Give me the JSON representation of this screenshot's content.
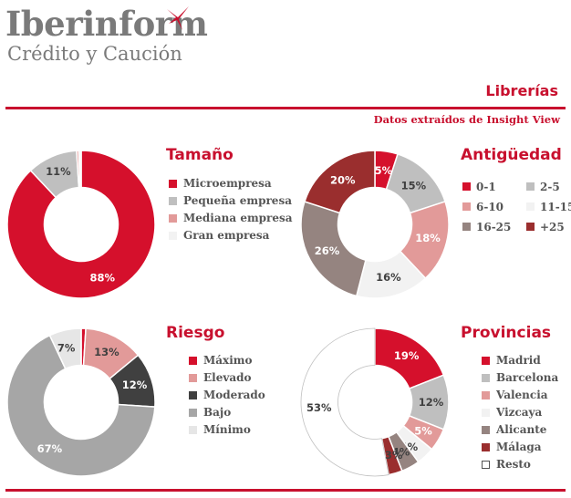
{
  "header": {
    "logo_main": "Iberinform",
    "logo_sub": "Crédito y Caución",
    "page_title": "Librerías",
    "source": "Datos extraídos de Insight View"
  },
  "colors": {
    "accent": "#c8102e",
    "text_gray": "#555555",
    "logo_gray": "#7a7a7a"
  },
  "chart_data": [
    {
      "type": "pie",
      "title": "Tamaño",
      "categories": [
        "Microempresa",
        "Pequeña empresa",
        "Mediana empresa",
        "Gran empresa"
      ],
      "values": [
        88,
        11,
        0.5,
        0.5
      ],
      "labels": [
        "88%",
        "11%",
        "",
        ""
      ],
      "colors": [
        "#d5102c",
        "#bfbfbf",
        "#e29a99",
        "#f2f2f2"
      ],
      "label_colors": [
        "#ffffff",
        "#404040",
        "#404040",
        "#404040"
      ],
      "hole": 0.5,
      "legend": "right"
    },
    {
      "type": "pie",
      "title": "Antigüedad",
      "categories": [
        "0-1",
        "2-5",
        "6-10",
        "11-15",
        "16-25",
        "+25"
      ],
      "values": [
        5,
        15,
        18,
        16,
        26,
        20
      ],
      "labels": [
        "5%",
        "15%",
        "18%",
        "16%",
        "26%",
        "20%"
      ],
      "colors": [
        "#d5102c",
        "#bfbfbf",
        "#e29a99",
        "#f2f2f2",
        "#958480",
        "#9a2e2e"
      ],
      "label_colors": [
        "#ffffff",
        "#404040",
        "#ffffff",
        "#404040",
        "#ffffff",
        "#ffffff"
      ],
      "hole": 0.5,
      "legend": "right"
    },
    {
      "type": "pie",
      "title": "Riesgo",
      "categories": [
        "Máximo",
        "Elevado",
        "Moderado",
        "Bajo",
        "Mínimo"
      ],
      "values": [
        1,
        13,
        12,
        67,
        7
      ],
      "labels": [
        "1%",
        "13%",
        "12%",
        "67%",
        "7%"
      ],
      "colors": [
        "#d5102c",
        "#e29a99",
        "#404040",
        "#a6a6a6",
        "#e6e6e6"
      ],
      "label_colors": [
        "#ffffff",
        "#404040",
        "#ffffff",
        "#ffffff",
        "#404040"
      ],
      "hole": 0.5,
      "legend": "right"
    },
    {
      "type": "pie",
      "title": "Provincias",
      "categories": [
        "Madrid",
        "Barcelona",
        "Valencia",
        "Vizcaya",
        "Alicante",
        "Málaga",
        "Resto"
      ],
      "values": [
        19,
        12,
        5,
        4,
        4,
        3,
        53
      ],
      "labels": [
        "19%",
        "12%",
        "5%",
        "4%",
        "4%",
        "3%",
        "53%"
      ],
      "colors": [
        "#d5102c",
        "#bfbfbf",
        "#e29a99",
        "#f2f2f2",
        "#958480",
        "#9a2e2e",
        "#ffffff"
      ],
      "label_colors": [
        "#ffffff",
        "#404040",
        "#ffffff",
        "#404040",
        "#404040",
        "#404040",
        "#404040"
      ],
      "hole": 0.5,
      "legend": "right"
    }
  ]
}
